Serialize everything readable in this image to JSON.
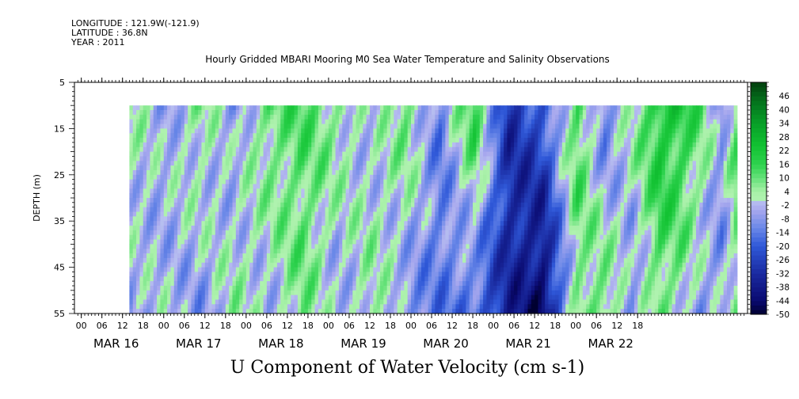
{
  "header": {
    "longitude": "LONGITUDE : 121.9W(-121.9)",
    "latitude": "LATITUDE : 36.8N",
    "year": "YEAR : 2011"
  },
  "chart_data": {
    "type": "heatmap",
    "title": "Hourly Gridded MBARI Mooring M0 Sea Water Temperature and Salinity Observations",
    "xlabel": "U Component of Water Velocity (cm s-1)",
    "ylabel": "DEPTH (m)",
    "ylim": [
      55,
      5
    ],
    "y_ticks": [
      5,
      15,
      25,
      35,
      45,
      55
    ],
    "depth_data_range": [
      10,
      55
    ],
    "x_hour_ticks": [
      "00",
      "06",
      "12",
      "18",
      "00",
      "06",
      "12",
      "18",
      "00",
      "06",
      "12",
      "18",
      "00",
      "06",
      "12",
      "18",
      "00",
      "06",
      "12",
      "18",
      "00",
      "06",
      "12",
      "18",
      "00",
      "06",
      "12",
      "18"
    ],
    "x_day_labels": [
      "MAR 16",
      "MAR 17",
      "MAR 18",
      "MAR 19",
      "MAR 20",
      "MAR 21",
      "MAR 22"
    ],
    "colorbar_levels": [
      46,
      40,
      34,
      28,
      22,
      16,
      10,
      4,
      -2,
      -8,
      -14,
      -20,
      -26,
      -32,
      -38,
      -44,
      -50
    ],
    "colorbar_range": [
      -50,
      52
    ],
    "colors": {
      "positive": "#00c830",
      "negative": "#1a2aa0",
      "near_zero_pos": "#a8f0a8",
      "near_zero_neg": "#a8a8ee"
    },
    "time_series_hourly_means": {
      "time_range_hours": [
        14,
        191
      ],
      "nodes_hours": [
        14,
        24,
        34,
        44,
        54,
        64,
        74,
        84,
        94,
        104,
        114,
        124,
        134,
        144,
        152,
        160,
        168,
        174,
        180,
        186,
        191
      ],
      "u_surface": [
        4,
        -6,
        6,
        -8,
        10,
        12,
        6,
        -4,
        10,
        -12,
        18,
        -30,
        -20,
        14,
        -14,
        4,
        22,
        20,
        10,
        -10,
        18
      ],
      "u_bottom": [
        -6,
        -2,
        -8,
        4,
        -4,
        8,
        -6,
        6,
        -10,
        -14,
        -18,
        -34,
        -46,
        6,
        12,
        -10,
        8,
        2,
        -8,
        -6,
        4
      ]
    }
  }
}
